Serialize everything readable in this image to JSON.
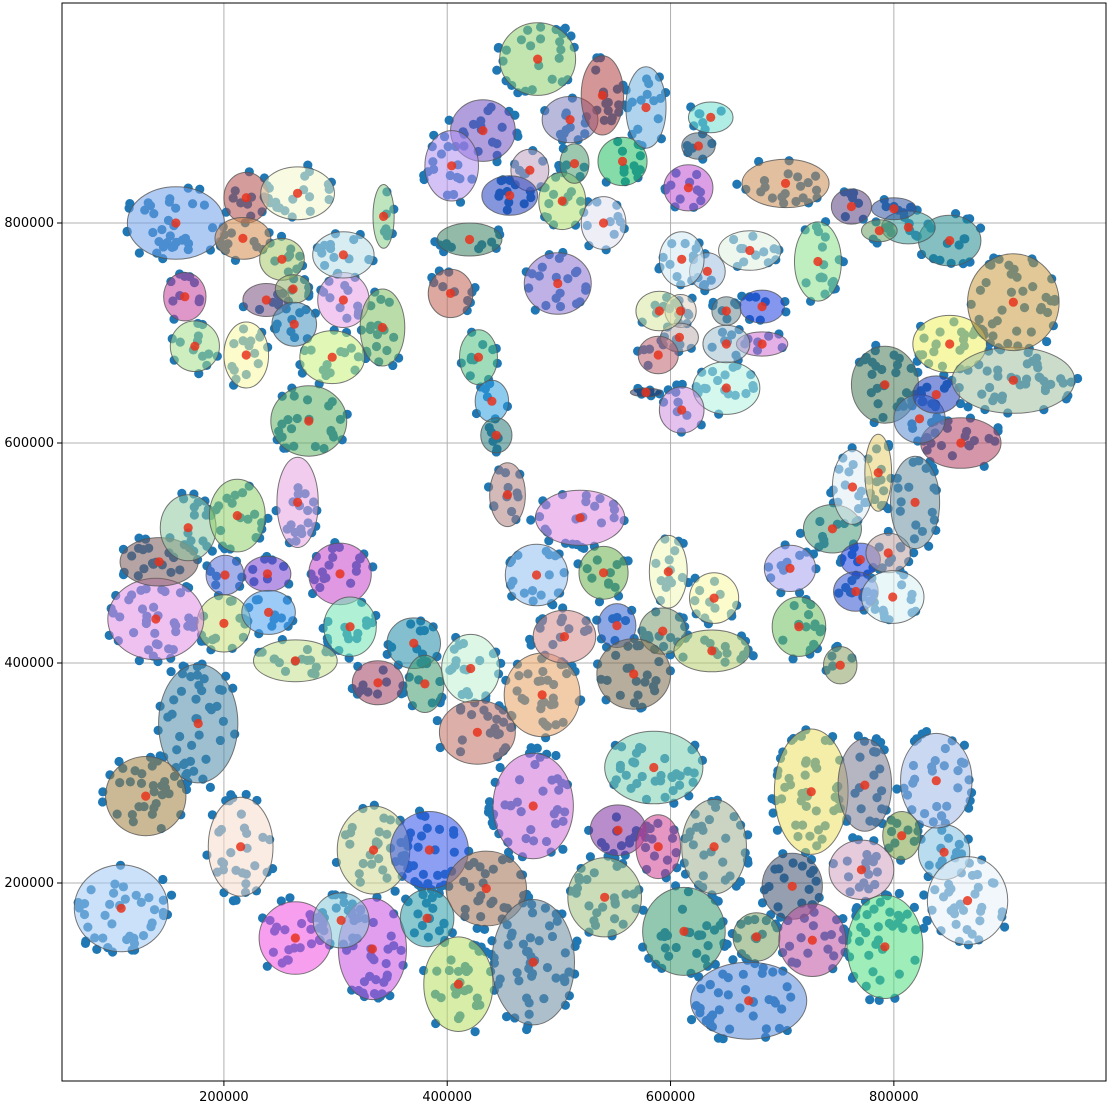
{
  "chart_data": {
    "type": "scatter",
    "title": "",
    "xlabel": "",
    "ylabel": "",
    "xlim": [
      55000,
      990000
    ],
    "ylim": [
      20000,
      1000000
    ],
    "x_ticks": [
      200000,
      400000,
      600000,
      800000
    ],
    "y_ticks": [
      200000,
      400000,
      600000,
      800000
    ],
    "x_tick_labels": [
      "200000",
      "400000",
      "600000",
      "800000"
    ],
    "y_tick_labels": [
      "200000",
      "400000",
      "600000",
      "800000"
    ],
    "grid": true,
    "legend": "none",
    "colors": {
      "points": "#1f77b4",
      "centers": "#e8331c",
      "grid": "#b0b0b0",
      "axes": "#000000"
    },
    "clusters": [
      {
        "cx": 157000,
        "cy": 800000,
        "w": 87000,
        "h": 66000,
        "color": "#6fa0ea"
      },
      {
        "cx": 200000,
        "cy": 436000,
        "w": 48000,
        "h": 52000,
        "color": "#c8e07a"
      },
      {
        "cx": 177000,
        "cy": 345000,
        "w": 71000,
        "h": 108000,
        "color": "#4d8aa8"
      },
      {
        "cx": 215000,
        "cy": 233000,
        "w": 58000,
        "h": 90000,
        "color": "#f6dccb"
      },
      {
        "cx": 108000,
        "cy": 177000,
        "w": 84000,
        "h": 79000,
        "color": "#9ec9f4"
      },
      {
        "cx": 130000,
        "cy": 279000,
        "w": 72000,
        "h": 72000,
        "color": "#a08040"
      },
      {
        "cx": 139000,
        "cy": 440000,
        "w": 86000,
        "h": 74000,
        "color": "#e18ee6"
      },
      {
        "cx": 142000,
        "cy": 492000,
        "w": 70000,
        "h": 44000,
        "color": "#7a5a5a"
      },
      {
        "cx": 168000,
        "cy": 523000,
        "w": 50000,
        "h": 60000,
        "color": "#8ec9a0"
      },
      {
        "cx": 212000,
        "cy": 534000,
        "w": 50000,
        "h": 66000,
        "color": "#8fd16a"
      },
      {
        "cx": 201000,
        "cy": 480000,
        "w": 34000,
        "h": 36000,
        "color": "#5a6fd8"
      },
      {
        "cx": 239000,
        "cy": 481000,
        "w": 42000,
        "h": 32000,
        "color": "#7a3fd0"
      },
      {
        "cx": 240000,
        "cy": 446000,
        "w": 48000,
        "h": 40000,
        "color": "#4aa0f0"
      },
      {
        "cx": 266000,
        "cy": 546000,
        "w": 37000,
        "h": 82000,
        "color": "#e8a3e0"
      },
      {
        "cx": 304000,
        "cy": 481000,
        "w": 56000,
        "h": 56000,
        "color": "#c443c9"
      },
      {
        "cx": 313000,
        "cy": 433000,
        "w": 47000,
        "h": 54000,
        "color": "#6fe6b4"
      },
      {
        "cx": 264000,
        "cy": 402000,
        "w": 75000,
        "h": 38000,
        "color": "#c3e08a"
      },
      {
        "cx": 165000,
        "cy": 733000,
        "w": 38000,
        "h": 44000,
        "color": "#c5409a"
      },
      {
        "cx": 174000,
        "cy": 688000,
        "w": 44000,
        "h": 46000,
        "color": "#a8e08a"
      },
      {
        "cx": 220000,
        "cy": 680000,
        "w": 40000,
        "h": 60000,
        "color": "#f7f7a0"
      },
      {
        "cx": 220000,
        "cy": 823000,
        "w": 40000,
        "h": 46000,
        "color": "#b24b4b"
      },
      {
        "cx": 217000,
        "cy": 786000,
        "w": 50000,
        "h": 38000,
        "color": "#d48a4a"
      },
      {
        "cx": 266000,
        "cy": 827000,
        "w": 66000,
        "h": 48000,
        "color": "#f2f7c8"
      },
      {
        "cx": 276000,
        "cy": 620000,
        "w": 68000,
        "h": 64000,
        "color": "#5fb060"
      },
      {
        "cx": 297000,
        "cy": 678000,
        "w": 58000,
        "h": 48000,
        "color": "#c6f07a"
      },
      {
        "cx": 307000,
        "cy": 730000,
        "w": 46000,
        "h": 50000,
        "color": "#e89ee6"
      },
      {
        "cx": 307000,
        "cy": 771000,
        "w": 55000,
        "h": 42000,
        "color": "#b8dfe6"
      },
      {
        "cx": 238000,
        "cy": 730000,
        "w": 42000,
        "h": 30000,
        "color": "#7a5080"
      },
      {
        "cx": 252000,
        "cy": 767000,
        "w": 40000,
        "h": 38000,
        "color": "#a8c86a"
      },
      {
        "cx": 262000,
        "cy": 740000,
        "w": 32000,
        "h": 26000,
        "color": "#8fb06a"
      },
      {
        "cx": 263000,
        "cy": 708000,
        "w": 40000,
        "h": 40000,
        "color": "#4090c0"
      },
      {
        "cx": 342000,
        "cy": 705000,
        "w": 40000,
        "h": 70000,
        "color": "#7fc060"
      },
      {
        "cx": 343000,
        "cy": 806000,
        "w": 19000,
        "h": 58000,
        "color": "#8ad08a"
      },
      {
        "cx": 334000,
        "cy": 230000,
        "w": 65000,
        "h": 80000,
        "color": "#d2d890"
      },
      {
        "cx": 264000,
        "cy": 150000,
        "w": 65000,
        "h": 66000,
        "color": "#f04fe0"
      },
      {
        "cx": 333000,
        "cy": 140000,
        "w": 61000,
        "h": 92000,
        "color": "#c84fe0"
      },
      {
        "cx": 384000,
        "cy": 230000,
        "w": 70000,
        "h": 70000,
        "color": "#3050e8"
      },
      {
        "cx": 382000,
        "cy": 168000,
        "w": 48000,
        "h": 52000,
        "color": "#2a9aa8"
      },
      {
        "cx": 410000,
        "cy": 108000,
        "w": 62000,
        "h": 86000,
        "color": "#b8e060"
      },
      {
        "cx": 435000,
        "cy": 195000,
        "w": 72000,
        "h": 68000,
        "color": "#a07050"
      },
      {
        "cx": 477000,
        "cy": 128000,
        "w": 74000,
        "h": 114000,
        "color": "#6a8aa0"
      },
      {
        "cx": 305000,
        "cy": 166000,
        "w": 50000,
        "h": 50000,
        "color": "#86c8d8"
      },
      {
        "cx": 338000,
        "cy": 382000,
        "w": 46000,
        "h": 40000,
        "color": "#a04060"
      },
      {
        "cx": 370000,
        "cy": 418000,
        "w": 48000,
        "h": 46000,
        "color": "#1f8aa8"
      },
      {
        "cx": 380000,
        "cy": 381000,
        "w": 34000,
        "h": 52000,
        "color": "#3f9a70"
      },
      {
        "cx": 421000,
        "cy": 395000,
        "w": 52000,
        "h": 62000,
        "color": "#bff0d0"
      },
      {
        "cx": 427000,
        "cy": 337000,
        "w": 68000,
        "h": 58000,
        "color": "#c07060"
      },
      {
        "cx": 480000,
        "cy": 480000,
        "w": 56000,
        "h": 56000,
        "color": "#8fc0f0"
      },
      {
        "cx": 485000,
        "cy": 371000,
        "w": 68000,
        "h": 76000,
        "color": "#e8a060"
      },
      {
        "cx": 505000,
        "cy": 424000,
        "w": 56000,
        "h": 48000,
        "color": "#d48a8a"
      },
      {
        "cx": 519000,
        "cy": 532000,
        "w": 80000,
        "h": 50000,
        "color": "#e08ae0"
      },
      {
        "cx": 540000,
        "cy": 482000,
        "w": 44000,
        "h": 48000,
        "color": "#6ab04a"
      },
      {
        "cx": 552000,
        "cy": 434000,
        "w": 34000,
        "h": 40000,
        "color": "#3060d0"
      },
      {
        "cx": 593000,
        "cy": 429000,
        "w": 42000,
        "h": 42000,
        "color": "#7a9a70"
      },
      {
        "cx": 567000,
        "cy": 390000,
        "w": 66000,
        "h": 64000,
        "color": "#7a6a4a"
      },
      {
        "cx": 598000,
        "cy": 483000,
        "w": 34000,
        "h": 66000,
        "color": "#f0f7b8"
      },
      {
        "cx": 639000,
        "cy": 459000,
        "w": 44000,
        "h": 46000,
        "color": "#f7f7a0"
      },
      {
        "cx": 637000,
        "cy": 411000,
        "w": 68000,
        "h": 38000,
        "color": "#b8d070"
      },
      {
        "cx": 477000,
        "cy": 270000,
        "w": 72000,
        "h": 96000,
        "color": "#d070d8"
      },
      {
        "cx": 553000,
        "cy": 248000,
        "w": 50000,
        "h": 46000,
        "color": "#8030a0"
      },
      {
        "cx": 585000,
        "cy": 305000,
        "w": 88000,
        "h": 66000,
        "color": "#7ad0b0"
      },
      {
        "cx": 589000,
        "cy": 233000,
        "w": 40000,
        "h": 58000,
        "color": "#d04090"
      },
      {
        "cx": 639000,
        "cy": 233000,
        "w": 58000,
        "h": 86000,
        "color": "#a0b090"
      },
      {
        "cx": 541000,
        "cy": 187000,
        "w": 66000,
        "h": 72000,
        "color": "#a0c080"
      },
      {
        "cx": 612000,
        "cy": 156000,
        "w": 74000,
        "h": 80000,
        "color": "#3a9a70"
      },
      {
        "cx": 670000,
        "cy": 93000,
        "w": 104000,
        "h": 70000,
        "color": "#5a8ad8"
      },
      {
        "cx": 677000,
        "cy": 151000,
        "w": 42000,
        "h": 44000,
        "color": "#7aa060"
      },
      {
        "cx": 709000,
        "cy": 197000,
        "w": 54000,
        "h": 60000,
        "color": "#405070"
      },
      {
        "cx": 726000,
        "cy": 283000,
        "w": 66000,
        "h": 114000,
        "color": "#ece060"
      },
      {
        "cx": 727000,
        "cy": 148000,
        "w": 60000,
        "h": 66000,
        "color": "#c050a0"
      },
      {
        "cx": 771000,
        "cy": 212000,
        "w": 58000,
        "h": 54000,
        "color": "#d0a0c0"
      },
      {
        "cx": 774000,
        "cy": 289000,
        "w": 48000,
        "h": 84000,
        "color": "#7a7a90"
      },
      {
        "cx": 792000,
        "cy": 142000,
        "w": 68000,
        "h": 94000,
        "color": "#50e080"
      },
      {
        "cx": 807000,
        "cy": 243000,
        "w": 34000,
        "h": 44000,
        "color": "#7aa040"
      },
      {
        "cx": 845000,
        "cy": 228000,
        "w": 46000,
        "h": 50000,
        "color": "#80c0e0"
      },
      {
        "cx": 838000,
        "cy": 293000,
        "w": 64000,
        "h": 86000,
        "color": "#a0b8e8"
      },
      {
        "cx": 866000,
        "cy": 184000,
        "w": 72000,
        "h": 80000,
        "color": "#e8f0f8"
      },
      {
        "cx": 707000,
        "cy": 486000,
        "w": 46000,
        "h": 42000,
        "color": "#a8a0f0"
      },
      {
        "cx": 715000,
        "cy": 433000,
        "w": 48000,
        "h": 54000,
        "color": "#70c060"
      },
      {
        "cx": 752000,
        "cy": 398000,
        "w": 30000,
        "h": 34000,
        "color": "#8aa060"
      },
      {
        "cx": 745000,
        "cy": 522000,
        "w": 52000,
        "h": 44000,
        "color": "#4a9a7a"
      },
      {
        "cx": 763000,
        "cy": 560000,
        "w": 36000,
        "h": 68000,
        "color": "#e0ecf4"
      },
      {
        "cx": 786000,
        "cy": 573000,
        "w": 24000,
        "h": 70000,
        "color": "#e8d070"
      },
      {
        "cx": 770000,
        "cy": 494000,
        "w": 36000,
        "h": 30000,
        "color": "#2040e0"
      },
      {
        "cx": 795000,
        "cy": 500000,
        "w": 40000,
        "h": 36000,
        "color": "#c0a0a0"
      },
      {
        "cx": 766000,
        "cy": 465000,
        "w": 40000,
        "h": 36000,
        "color": "#3050d0"
      },
      {
        "cx": 799000,
        "cy": 460000,
        "w": 56000,
        "h": 48000,
        "color": "#d8f0f4"
      },
      {
        "cx": 819000,
        "cy": 546000,
        "w": 44000,
        "h": 84000,
        "color": "#6a90a0"
      },
      {
        "cx": 860000,
        "cy": 600000,
        "w": 72000,
        "h": 46000,
        "color": "#b04060"
      },
      {
        "cx": 792000,
        "cy": 653000,
        "w": 60000,
        "h": 70000,
        "color": "#4a7a5a"
      },
      {
        "cx": 823000,
        "cy": 622000,
        "w": 46000,
        "h": 44000,
        "color": "#5a8ad0"
      },
      {
        "cx": 838000,
        "cy": 644000,
        "w": 42000,
        "h": 34000,
        "color": "#2040c0"
      },
      {
        "cx": 850000,
        "cy": 690000,
        "w": 66000,
        "h": 52000,
        "color": "#f0f060"
      },
      {
        "cx": 907000,
        "cy": 657000,
        "w": 110000,
        "h": 60000,
        "color": "#a0c0a0"
      },
      {
        "cx": 907000,
        "cy": 728000,
        "w": 82000,
        "h": 88000,
        "color": "#c89a40"
      },
      {
        "cx": 850000,
        "cy": 784000,
        "w": 56000,
        "h": 46000,
        "color": "#208a90"
      },
      {
        "cx": 813000,
        "cy": 796000,
        "w": 48000,
        "h": 30000,
        "color": "#3aa0a0"
      },
      {
        "cx": 800000,
        "cy": 813000,
        "w": 40000,
        "h": 20000,
        "color": "#3050a0"
      },
      {
        "cx": 787000,
        "cy": 793000,
        "w": 32000,
        "h": 20000,
        "color": "#6aa060"
      },
      {
        "cx": 762000,
        "cy": 815000,
        "w": 36000,
        "h": 32000,
        "color": "#5a4080"
      },
      {
        "cx": 703000,
        "cy": 836000,
        "w": 78000,
        "h": 44000,
        "color": "#c88a50"
      },
      {
        "cx": 732000,
        "cy": 765000,
        "w": 42000,
        "h": 72000,
        "color": "#8ae08a"
      },
      {
        "cx": 671000,
        "cy": 775000,
        "w": 56000,
        "h": 36000,
        "color": "#e0f0e0"
      },
      {
        "cx": 682000,
        "cy": 724000,
        "w": 40000,
        "h": 30000,
        "color": "#2040e0"
      },
      {
        "cx": 682000,
        "cy": 690000,
        "w": 46000,
        "h": 22000,
        "color": "#d070d0"
      },
      {
        "cx": 650000,
        "cy": 650000,
        "w": 60000,
        "h": 48000,
        "color": "#b0f0e0"
      },
      {
        "cx": 650000,
        "cy": 690000,
        "w": 42000,
        "h": 34000,
        "color": "#a0c0d0"
      },
      {
        "cx": 650000,
        "cy": 720000,
        "w": 26000,
        "h": 26000,
        "color": "#6a8a90"
      },
      {
        "cx": 633000,
        "cy": 756000,
        "w": 32000,
        "h": 34000,
        "color": "#a0c0e0"
      },
      {
        "cx": 609000,
        "cy": 720000,
        "w": 28000,
        "h": 30000,
        "color": "#e0d0c0"
      },
      {
        "cx": 608000,
        "cy": 696000,
        "w": 34000,
        "h": 26000,
        "color": "#c0b0b0"
      },
      {
        "cx": 590000,
        "cy": 720000,
        "w": 42000,
        "h": 36000,
        "color": "#d8e8a0"
      },
      {
        "cx": 589000,
        "cy": 680000,
        "w": 36000,
        "h": 34000,
        "color": "#c06070"
      },
      {
        "cx": 610000,
        "cy": 767000,
        "w": 40000,
        "h": 50000,
        "color": "#d0e8f0"
      },
      {
        "cx": 610000,
        "cy": 630000,
        "w": 40000,
        "h": 42000,
        "color": "#d090e0"
      },
      {
        "cx": 578000,
        "cy": 646000,
        "w": 28000,
        "h": 8000,
        "color": "#203060"
      },
      {
        "cx": 499000,
        "cy": 745000,
        "w": 60000,
        "h": 56000,
        "color": "#8a70d0"
      },
      {
        "cx": 540000,
        "cy": 800000,
        "w": 40000,
        "h": 48000,
        "color": "#e0e0f0"
      },
      {
        "cx": 503000,
        "cy": 820000,
        "w": 42000,
        "h": 52000,
        "color": "#b0e070"
      },
      {
        "cx": 514000,
        "cy": 854000,
        "w": 26000,
        "h": 36000,
        "color": "#4a9a70"
      },
      {
        "cx": 474000,
        "cy": 848000,
        "w": 34000,
        "h": 38000,
        "color": "#c0a0c0"
      },
      {
        "cx": 557000,
        "cy": 856000,
        "w": 44000,
        "h": 44000,
        "color": "#20c060"
      },
      {
        "cx": 510000,
        "cy": 894000,
        "w": 50000,
        "h": 42000,
        "color": "#8080c0"
      },
      {
        "cx": 539000,
        "cy": 916000,
        "w": 38000,
        "h": 72000,
        "color": "#b04040"
      },
      {
        "cx": 578000,
        "cy": 905000,
        "w": 36000,
        "h": 74000,
        "color": "#70b0e0"
      },
      {
        "cx": 481000,
        "cy": 949000,
        "w": 68000,
        "h": 66000,
        "color": "#90d070"
      },
      {
        "cx": 432000,
        "cy": 884000,
        "w": 58000,
        "h": 56000,
        "color": "#7050c0"
      },
      {
        "cx": 456000,
        "cy": 825000,
        "w": 50000,
        "h": 36000,
        "color": "#2040c0"
      },
      {
        "cx": 404000,
        "cy": 852000,
        "w": 48000,
        "h": 64000,
        "color": "#b090f0"
      },
      {
        "cx": 420000,
        "cy": 785000,
        "w": 58000,
        "h": 30000,
        "color": "#3a8060"
      },
      {
        "cx": 403000,
        "cy": 736000,
        "w": 40000,
        "h": 44000,
        "color": "#c06050"
      },
      {
        "cx": 428000,
        "cy": 678000,
        "w": 34000,
        "h": 50000,
        "color": "#50c080"
      },
      {
        "cx": 440000,
        "cy": 638000,
        "w": 30000,
        "h": 38000,
        "color": "#30a0e0"
      },
      {
        "cx": 444000,
        "cy": 607000,
        "w": 28000,
        "h": 32000,
        "color": "#2a7a7a"
      },
      {
        "cx": 454000,
        "cy": 553000,
        "w": 32000,
        "h": 58000,
        "color": "#b08080"
      },
      {
        "cx": 636000,
        "cy": 896000,
        "w": 40000,
        "h": 28000,
        "color": "#70e0d0"
      },
      {
        "cx": 625000,
        "cy": 870000,
        "w": 30000,
        "h": 24000,
        "color": "#4a6a80"
      },
      {
        "cx": 616000,
        "cy": 832000,
        "w": 44000,
        "h": 42000,
        "color": "#c050d0"
      }
    ]
  }
}
